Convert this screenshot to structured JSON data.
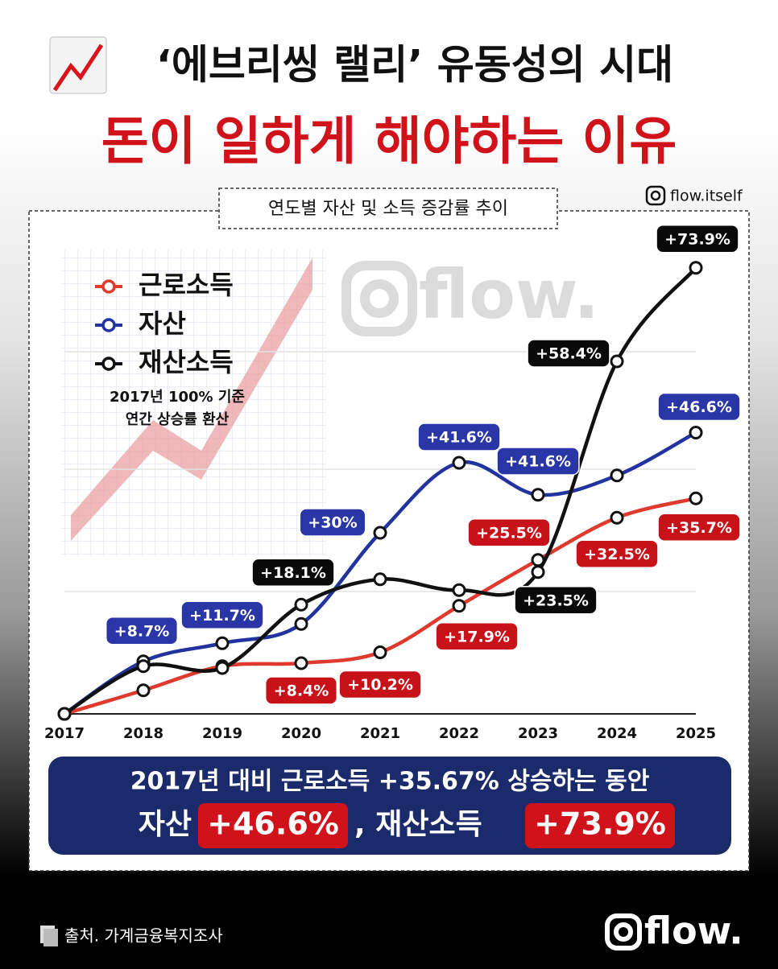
{
  "header": {
    "title": "‘에브리씽 랠리’ 유동성의 시대",
    "headline": "돈이 일하게 해야하는 이유"
  },
  "handle": "flow.itself",
  "chart_data": {
    "type": "line",
    "title": "연도별 자산 및 소득 증감률 추이",
    "legend_note": [
      "2017년 100% 기준",
      "연간 상승률 환산"
    ],
    "watermark": "flow.",
    "categories": [
      "2017",
      "2018",
      "2019",
      "2020",
      "2021",
      "2022",
      "2023",
      "2024",
      "2025"
    ],
    "ylim": [
      0,
      80
    ],
    "legend": "upper left",
    "series": [
      {
        "name": "근로소득",
        "color": "#e0392e",
        "label_color": "#c8121a",
        "values": [
          0,
          3.9,
          7.9,
          8.4,
          10.2,
          17.9,
          25.5,
          32.5,
          35.7
        ],
        "value_labels": [
          null,
          null,
          null,
          "+8.4%",
          "+10.2%",
          "+17.9%",
          "+25.5%",
          "+32.5%",
          "+35.7%"
        ]
      },
      {
        "name": "자산",
        "color": "#2233a0",
        "label_color": "#2a35a6",
        "values": [
          0,
          8.7,
          11.7,
          14.9,
          30,
          41.6,
          36.3,
          39.5,
          46.6
        ],
        "value_labels": [
          null,
          "+8.7%",
          "+11.7%",
          null,
          "+30%",
          "+41.6%",
          null,
          null,
          "+46.6%"
        ]
      },
      {
        "name": "재산소득",
        "color": "#111111",
        "label_color": "#0a0a0a",
        "values": [
          0,
          7.9,
          7.6,
          18.1,
          22.3,
          20.5,
          23.5,
          58.4,
          73.9
        ],
        "value_labels": [
          null,
          null,
          null,
          "+18.1%",
          null,
          null,
          "+23.5%",
          "+58.4%",
          "+73.9%"
        ]
      }
    ],
    "annotations": [
      {
        "text": "+41.6%",
        "color": "#2a35a6"
      }
    ]
  },
  "summary": {
    "line1": "2017년 대비 근로소득 +35.67% 상승하는 동안",
    "asset_label": "자산",
    "asset_value": "+46.6%",
    "income_label": ", 재산소득",
    "income_value": "+73.9%"
  },
  "footer": {
    "source": "출처. 가계금융복지조사",
    "logo": "flow."
  }
}
